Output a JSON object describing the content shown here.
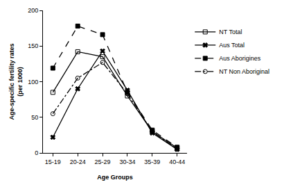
{
  "chart_data": {
    "type": "line",
    "x_label": "Age Groups",
    "y_label": "Age-specific fertility rates\n(per 1000)",
    "categories": [
      "15-19",
      "20-24",
      "25-29",
      "30-34",
      "35-39",
      "40-44"
    ],
    "series": [
      {
        "name": "NT Total",
        "color": "#000000",
        "marker": "square-open",
        "line_style": "solid",
        "values": [
          85,
          142,
          135,
          80,
          30,
          7
        ]
      },
      {
        "name": "Aus Total",
        "color": "#000000",
        "marker": "x",
        "line_style": "solid",
        "values": [
          22,
          90,
          143,
          88,
          28,
          5
        ]
      },
      {
        "name": "Aus Aborigines",
        "color": "#000000",
        "marker": "square",
        "line_style": "dash",
        "values": [
          119,
          178,
          166,
          85,
          32,
          8
        ]
      },
      {
        "name": "NT Non Aboriginal",
        "color": "#000000",
        "marker": "circle-open",
        "line_style": "dashdot",
        "values": [
          55,
          105,
          127,
          83,
          30,
          5
        ]
      }
    ],
    "ylim": [
      0,
      200
    ],
    "yticks": [
      0,
      50,
      100,
      150,
      200
    ],
    "grid": false,
    "legend": "right"
  }
}
